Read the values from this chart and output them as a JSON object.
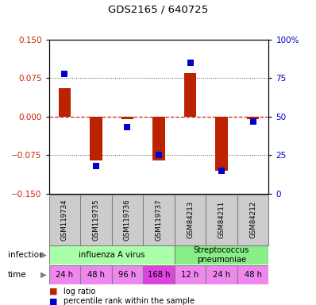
{
  "title": "GDS2165 / 640725",
  "samples": [
    "GSM119734",
    "GSM119735",
    "GSM119736",
    "GSM119737",
    "GSM84213",
    "GSM84211",
    "GSM84212"
  ],
  "log_ratio": [
    0.055,
    -0.085,
    -0.005,
    -0.085,
    0.085,
    -0.105,
    -0.005
  ],
  "percentile_rank": [
    78,
    18,
    43,
    25,
    85,
    15,
    47
  ],
  "infection_groups": [
    {
      "label": "influenza A virus",
      "start": 0,
      "end": 4,
      "color": "#aaffaa"
    },
    {
      "label": "Streptococcus\npneumoniae",
      "start": 4,
      "end": 7,
      "color": "#88ee88"
    }
  ],
  "time_labels": [
    "24 h",
    "48 h",
    "96 h",
    "168 h",
    "12 h",
    "24 h",
    "48 h"
  ],
  "time_colors": [
    "#ee88ee",
    "#ee88ee",
    "#ee88ee",
    "#dd44dd",
    "#ee88ee",
    "#ee88ee",
    "#ee88ee"
  ],
  "ylim_left": [
    -0.15,
    0.15
  ],
  "ylim_right": [
    0,
    100
  ],
  "yticks_left": [
    -0.15,
    -0.075,
    0,
    0.075,
    0.15
  ],
  "yticks_right": [
    0,
    25,
    50,
    75,
    100
  ],
  "bar_color": "#bb2200",
  "dot_color": "#0000cc",
  "hline_color": "#cc2222",
  "dotted_color": "#444444",
  "bar_width": 0.4,
  "dot_size": 35,
  "label_color_red": "#cc2200",
  "label_color_blue": "#0000cc",
  "sample_bg": "#cccccc",
  "fig_width": 3.98,
  "fig_height": 3.84,
  "fig_dpi": 100
}
